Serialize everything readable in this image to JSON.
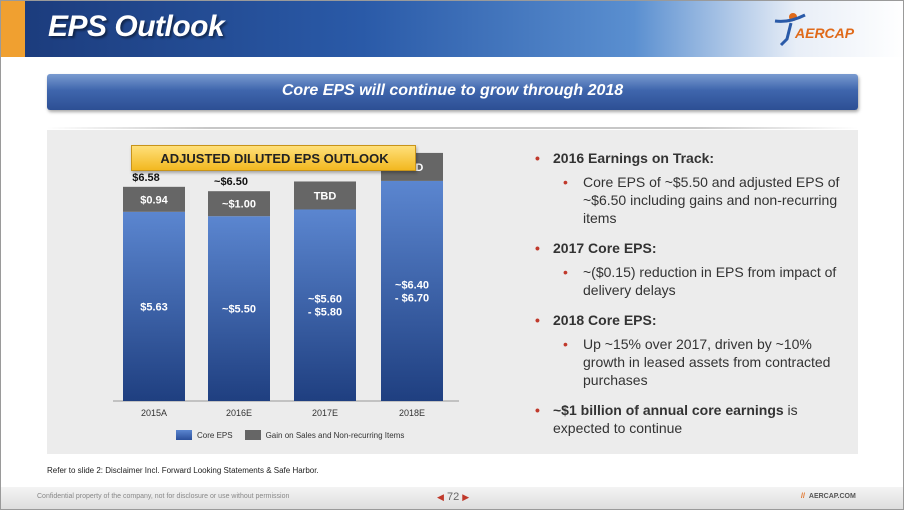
{
  "header": {
    "title": "EPS Outlook",
    "logo_text": "AERCAP",
    "colors": {
      "orange": "#f0a030",
      "blue": "#2a5aa8"
    }
  },
  "banner": {
    "text": "Core EPS will continue to grow through 2018"
  },
  "chart_title": "ADJUSTED DILUTED EPS OUTLOOK",
  "chart_data": {
    "type": "bar",
    "stacked": true,
    "categories": [
      "2015A",
      "2016E",
      "2017E",
      "2018E"
    ],
    "series": [
      {
        "name": "Core EPS",
        "color": "#3a64b4",
        "values": [
          5.63,
          5.5,
          5.7,
          6.55
        ],
        "labels": [
          "$5.63",
          "~$5.50",
          "~$5.60\n- $5.80",
          "~$6.40\n- $6.70"
        ]
      },
      {
        "name": "Gain on Sales and Non-recurring Items",
        "color": "#666666",
        "values": [
          0.94,
          1.0,
          0.0,
          0.0
        ],
        "labels": [
          "$0.94",
          "~$1.00",
          "TBD",
          "TBD"
        ]
      }
    ],
    "totals": [
      "$6.58",
      "~$6.50",
      "",
      ""
    ],
    "title": "ADJUSTED DILUTED EPS OUTLOOK",
    "ylim": [
      0,
      7.5
    ],
    "grid": false,
    "legend": "bottom"
  },
  "legend": {
    "core": "Core EPS",
    "gain": "Gain on Sales and Non-recurring Items"
  },
  "bullets": [
    {
      "heading": "2016 Earnings on Track:",
      "sub": [
        "Core EPS of ~$5.50 and adjusted EPS of ~$6.50 including gains and non-recurring items"
      ]
    },
    {
      "heading": "2017 Core EPS:",
      "sub": [
        "~($0.15) reduction in EPS from impact of delivery delays"
      ]
    },
    {
      "heading": "2018 Core EPS:",
      "sub": [
        "Up ~15% over 2017, driven by ~10% growth in leased assets from contracted purchases"
      ]
    }
  ],
  "last_bullet": {
    "bold": "~$1 billion of annual core earnings",
    "rest": " is expected to continue"
  },
  "footnote": "Refer to slide 2: Disclaimer Incl. Forward Looking Statements & Safe Harbor.",
  "footer": {
    "confidential": "Confidential property of the company, not for disclosure or use without permission",
    "page": "72",
    "site": "AERCAP.COM"
  }
}
